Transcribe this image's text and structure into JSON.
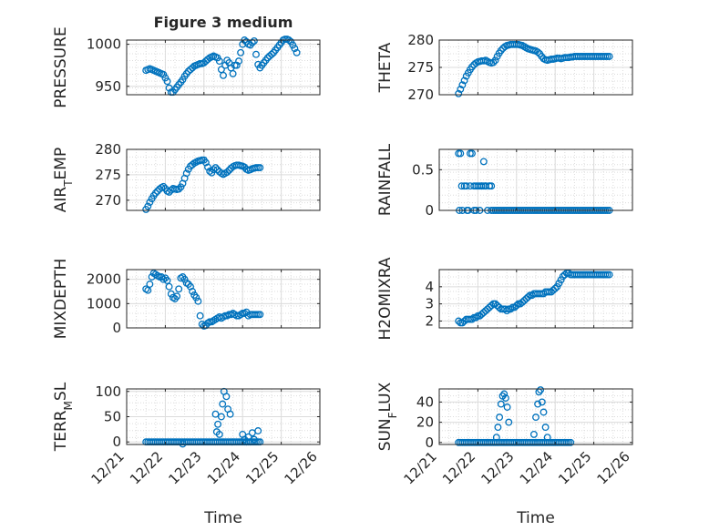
{
  "figure": {
    "title": "Figure 3 medium",
    "xlabel": "Time"
  },
  "style": {
    "marker_color": "#0072bd",
    "axis_color": "#262626",
    "grid_color": "#dcdcdc",
    "background": "#ffffff"
  },
  "x_axis": {
    "xlim": [
      0,
      5
    ],
    "ticks": [
      0,
      1,
      2,
      3,
      4,
      5
    ],
    "tick_labels": [
      "12/21",
      "12/22",
      "12/23",
      "12/24",
      "12/25",
      "12/26"
    ]
  },
  "chart_data": [
    {
      "type": "scatter",
      "ylabel": "PRESSURE",
      "ylim": [
        940,
        1005
      ],
      "yticks": [
        950,
        1000
      ],
      "ytick_labels": [
        "950",
        "1000"
      ],
      "grid": true,
      "x": [
        0.5,
        0.55,
        0.6,
        0.65,
        0.7,
        0.75,
        0.8,
        0.85,
        0.9,
        0.95,
        1.0,
        1.05,
        1.1,
        1.15,
        1.2,
        1.25,
        1.3,
        1.35,
        1.4,
        1.45,
        1.5,
        1.55,
        1.6,
        1.65,
        1.7,
        1.75,
        1.8,
        1.85,
        1.9,
        1.95,
        2.0,
        2.05,
        2.1,
        2.15,
        2.2,
        2.25,
        2.3,
        2.35,
        2.4,
        2.45,
        2.5,
        2.55,
        2.6,
        2.65,
        2.7,
        2.75,
        2.8,
        2.85,
        2.9,
        2.95,
        3.0,
        3.05,
        3.1,
        3.15,
        3.2,
        3.25,
        3.3,
        3.35,
        3.4,
        3.45,
        3.5,
        3.55,
        3.6,
        3.65,
        3.7,
        3.75,
        3.8,
        3.85,
        3.9,
        3.95,
        4.0,
        4.05,
        4.1,
        4.15,
        4.2,
        4.25,
        4.3,
        4.35,
        4.4
      ],
      "y": [
        969,
        970,
        971,
        970,
        969,
        968,
        967,
        966,
        965,
        964,
        960,
        956,
        948,
        943,
        943,
        946,
        949,
        952,
        955,
        958,
        962,
        965,
        968,
        970,
        972,
        974,
        975,
        976,
        977,
        977,
        978,
        980,
        982,
        984,
        985,
        986,
        985,
        984,
        980,
        970,
        963,
        975,
        981,
        978,
        972,
        965,
        975,
        975,
        980,
        990,
        1000,
        1005,
        1003,
        1000,
        999,
        1002,
        1004,
        988,
        976,
        972,
        975,
        978,
        981,
        984,
        986,
        988,
        990,
        993,
        996,
        999,
        1002,
        1005,
        1006,
        1006,
        1005,
        1003,
        999,
        995,
        990
      ]
    },
    {
      "type": "scatter",
      "ylabel": "THETA",
      "ylim": [
        270,
        280
      ],
      "yticks": [
        270,
        275,
        280
      ],
      "ytick_labels": [
        "270",
        "275",
        "280"
      ],
      "grid": true,
      "x": [
        0.5,
        0.55,
        0.6,
        0.65,
        0.7,
        0.75,
        0.8,
        0.85,
        0.9,
        0.95,
        1.0,
        1.05,
        1.1,
        1.15,
        1.2,
        1.25,
        1.3,
        1.35,
        1.4,
        1.45,
        1.5,
        1.55,
        1.6,
        1.65,
        1.7,
        1.75,
        1.8,
        1.85,
        1.9,
        1.95,
        2.0,
        2.05,
        2.1,
        2.15,
        2.2,
        2.25,
        2.3,
        2.35,
        2.4,
        2.45,
        2.5,
        2.55,
        2.6,
        2.65,
        2.7,
        2.75,
        2.8,
        2.85,
        2.9,
        2.95,
        3.0,
        3.05,
        3.1,
        3.15,
        3.2,
        3.25,
        3.3,
        3.35,
        3.4,
        3.45,
        3.5,
        3.55,
        3.6,
        3.65,
        3.7,
        3.75,
        3.8,
        3.85,
        3.9,
        3.95,
        4.0,
        4.05,
        4.1,
        4.15,
        4.2,
        4.25,
        4.3,
        4.35,
        4.4
      ],
      "y": [
        270.2,
        271.0,
        271.8,
        272.6,
        273.4,
        274.0,
        274.6,
        275.1,
        275.5,
        275.8,
        276.0,
        276.1,
        276.2,
        276.2,
        276.3,
        276.1,
        275.9,
        275.8,
        275.9,
        276.3,
        277.0,
        277.6,
        278.1,
        278.5,
        278.8,
        279.0,
        279.1,
        279.2,
        279.2,
        279.2,
        279.2,
        279.2,
        279.1,
        279.0,
        278.8,
        278.6,
        278.4,
        278.3,
        278.2,
        278.1,
        278.0,
        277.8,
        277.5,
        277.0,
        276.6,
        276.4,
        276.3,
        276.4,
        276.5,
        276.5,
        276.6,
        276.7,
        276.7,
        276.6,
        276.7,
        276.8,
        276.8,
        276.8,
        276.9,
        276.9,
        277.0,
        277.0,
        277.0,
        277.0,
        277.0,
        277.0,
        277.0,
        277.0,
        277.0,
        277.0,
        277.0,
        277.0,
        277.0,
        277.0,
        277.0,
        277.0,
        277.0,
        277.0,
        277.0
      ]
    },
    {
      "type": "scatter",
      "ylabel": "AIR_TEMP",
      "ylim": [
        268,
        280
      ],
      "yticks": [
        270,
        275,
        280
      ],
      "ytick_labels": [
        "270",
        "275",
        "280"
      ],
      "grid": true,
      "x": [
        0.5,
        0.55,
        0.6,
        0.65,
        0.7,
        0.75,
        0.8,
        0.85,
        0.9,
        0.95,
        1.0,
        1.05,
        1.1,
        1.15,
        1.2,
        1.25,
        1.3,
        1.35,
        1.4,
        1.45,
        1.5,
        1.55,
        1.6,
        1.65,
        1.7,
        1.75,
        1.8,
        1.85,
        1.9,
        1.95,
        2.0,
        2.05,
        2.1,
        2.15,
        2.2,
        2.25,
        2.3,
        2.35,
        2.4,
        2.45,
        2.5,
        2.55,
        2.6,
        2.65,
        2.7,
        2.75,
        2.8,
        2.85,
        2.9,
        2.95,
        3.0,
        3.05,
        3.1,
        3.15,
        3.2,
        3.25,
        3.3,
        3.35,
        3.4,
        3.45
      ],
      "y": [
        268.2,
        268.8,
        269.6,
        270.3,
        270.9,
        271.4,
        271.8,
        272.2,
        272.5,
        272.7,
        272.3,
        271.8,
        271.6,
        272.0,
        272.3,
        272.2,
        272.1,
        272.2,
        272.6,
        273.3,
        274.3,
        275.3,
        276.1,
        276.7,
        277.0,
        277.3,
        277.5,
        277.7,
        277.8,
        277.9,
        277.9,
        277.4,
        276.5,
        275.7,
        275.4,
        276.0,
        276.4,
        276.0,
        275.6,
        275.3,
        275.1,
        275.3,
        275.5,
        275.9,
        276.3,
        276.6,
        276.8,
        276.9,
        276.9,
        276.8,
        276.7,
        276.5,
        276.1,
        275.9,
        276.0,
        276.2,
        276.3,
        276.4,
        276.4,
        276.4
      ]
    },
    {
      "type": "scatter",
      "ylabel": "RAINFALL",
      "ylim": [
        0,
        0.75
      ],
      "yticks": [
        0,
        0.5
      ],
      "ytick_labels": [
        "0",
        "0.5"
      ],
      "grid": true,
      "x": [
        0.5,
        0.55,
        0.6,
        0.65,
        0.7,
        0.75,
        0.8,
        0.85,
        0.9,
        0.95,
        1.0,
        1.05,
        1.1,
        1.15,
        1.2,
        1.25,
        1.3,
        1.35,
        1.4,
        1.45,
        1.5,
        1.55,
        1.6,
        1.65,
        1.7,
        1.75,
        1.8,
        1.85,
        1.9,
        1.95,
        2.0,
        2.05,
        2.1,
        2.15,
        2.2,
        2.25,
        2.3,
        2.35,
        2.4,
        2.45,
        2.5,
        2.55,
        2.6,
        2.65,
        2.7,
        2.75,
        2.8,
        2.85,
        2.9,
        2.95,
        3.0,
        3.05,
        3.1,
        3.15,
        3.2,
        3.25,
        3.3,
        3.35,
        3.4,
        3.45,
        3.5,
        3.55,
        3.6,
        3.65,
        3.7,
        3.75,
        3.8,
        3.85,
        3.9,
        3.95,
        4.0,
        4.05,
        4.1,
        4.15,
        4.2,
        4.25,
        4.3,
        4.35,
        4.4,
        0.52,
        0.58,
        0.72,
        0.8,
        0.9,
        0.95,
        1.05,
        1.1,
        1.15,
        1.2,
        1.3,
        1.35
      ],
      "y": [
        0.7,
        0.7,
        0,
        0.3,
        0.3,
        0,
        0.7,
        0.7,
        0,
        0.3,
        0.3,
        0,
        0.3,
        0.3,
        0.3,
        0,
        0.3,
        0,
        0,
        0,
        0,
        0,
        0,
        0,
        0,
        0,
        0,
        0,
        0,
        0,
        0,
        0,
        0,
        0,
        0,
        0,
        0,
        0,
        0,
        0,
        0,
        0,
        0,
        0,
        0,
        0,
        0,
        0,
        0,
        0,
        0,
        0,
        0,
        0,
        0,
        0,
        0,
        0,
        0,
        0,
        0,
        0,
        0,
        0,
        0,
        0,
        0,
        0,
        0,
        0,
        0,
        0,
        0,
        0,
        0,
        0,
        0,
        0,
        0,
        0,
        0.3,
        0,
        0.3,
        0.3,
        0,
        0.3,
        0.3,
        0.6,
        0.3,
        0.3,
        0.3
      ]
    },
    {
      "type": "scatter",
      "ylabel": "MIXDEPTH",
      "ylim": [
        0,
        2400
      ],
      "yticks": [
        0,
        1000,
        2000
      ],
      "ytick_labels": [
        "0",
        "1000",
        "2000"
      ],
      "grid": true,
      "x": [
        0.5,
        0.55,
        0.6,
        0.65,
        0.7,
        0.75,
        0.8,
        0.85,
        0.9,
        0.95,
        1.0,
        1.05,
        1.1,
        1.15,
        1.2,
        1.25,
        1.3,
        1.35,
        1.4,
        1.45,
        1.5,
        1.55,
        1.6,
        1.65,
        1.7,
        1.75,
        1.8,
        1.85,
        1.9,
        1.95,
        2.0,
        2.05,
        2.1,
        2.15,
        2.2,
        2.25,
        2.3,
        2.35,
        2.4,
        2.45,
        2.5,
        2.55,
        2.6,
        2.65,
        2.7,
        2.75,
        2.8,
        2.85,
        2.9,
        2.95,
        3.0,
        3.05,
        3.1,
        3.15,
        3.2,
        3.25,
        3.3,
        3.35,
        3.4,
        3.45
      ],
      "y": [
        1600,
        1550,
        1800,
        2100,
        2250,
        2200,
        2150,
        2100,
        2100,
        2000,
        2050,
        1950,
        1700,
        1400,
        1250,
        1200,
        1300,
        1600,
        2050,
        2100,
        2000,
        1850,
        1800,
        1700,
        1500,
        1350,
        1250,
        1100,
        500,
        150,
        80,
        100,
        200,
        250,
        250,
        300,
        350,
        400,
        450,
        400,
        450,
        500,
        500,
        550,
        550,
        600,
        550,
        500,
        500,
        550,
        600,
        600,
        650,
        500,
        550,
        550,
        550,
        550,
        550,
        550
      ]
    },
    {
      "type": "scatter",
      "ylabel": "H2OMIXRA",
      "ylim": [
        1.6,
        5.0
      ],
      "yticks": [
        2,
        3,
        4
      ],
      "ytick_labels": [
        "2",
        "3",
        "4"
      ],
      "grid": true,
      "x": [
        0.5,
        0.55,
        0.6,
        0.65,
        0.7,
        0.75,
        0.8,
        0.85,
        0.9,
        0.95,
        1.0,
        1.05,
        1.1,
        1.15,
        1.2,
        1.25,
        1.3,
        1.35,
        1.4,
        1.45,
        1.5,
        1.55,
        1.6,
        1.65,
        1.7,
        1.75,
        1.8,
        1.85,
        1.9,
        1.95,
        2.0,
        2.05,
        2.1,
        2.15,
        2.2,
        2.25,
        2.3,
        2.35,
        2.4,
        2.45,
        2.5,
        2.55,
        2.6,
        2.65,
        2.7,
        2.75,
        2.8,
        2.85,
        2.9,
        2.95,
        3.0,
        3.05,
        3.1,
        3.15,
        3.2,
        3.25,
        3.3,
        3.35,
        3.4,
        3.45,
        3.5,
        3.55,
        3.6,
        3.65,
        3.7,
        3.75,
        3.8,
        3.85,
        3.9,
        3.95,
        4.0,
        4.05,
        4.1,
        4.15,
        4.2,
        4.25,
        4.3,
        4.35,
        4.4
      ],
      "y": [
        2.0,
        1.9,
        1.9,
        2.0,
        2.1,
        2.1,
        2.1,
        2.1,
        2.2,
        2.2,
        2.3,
        2.3,
        2.4,
        2.5,
        2.6,
        2.7,
        2.8,
        2.9,
        3.0,
        3.0,
        2.9,
        2.8,
        2.7,
        2.7,
        2.7,
        2.6,
        2.7,
        2.7,
        2.8,
        2.8,
        2.9,
        3.0,
        3.0,
        3.1,
        3.2,
        3.3,
        3.4,
        3.5,
        3.5,
        3.6,
        3.6,
        3.6,
        3.6,
        3.6,
        3.6,
        3.7,
        3.7,
        3.7,
        3.7,
        3.8,
        3.9,
        4.0,
        4.2,
        4.4,
        4.6,
        4.7,
        4.8,
        4.8,
        4.7,
        4.7,
        4.7,
        4.7,
        4.7,
        4.7,
        4.7,
        4.7,
        4.7,
        4.7,
        4.7,
        4.7,
        4.7,
        4.7,
        4.7,
        4.7,
        4.7,
        4.7,
        4.7,
        4.7,
        4.7
      ]
    },
    {
      "type": "scatter",
      "ylabel": "TERR_MSL",
      "ylim": [
        -5,
        105
      ],
      "yticks": [
        0,
        50,
        100
      ],
      "ytick_labels": [
        "0",
        "50",
        "100"
      ],
      "grid": true,
      "x": [
        0.5,
        0.55,
        0.6,
        0.65,
        0.7,
        0.75,
        0.8,
        0.85,
        0.9,
        0.95,
        1.0,
        1.05,
        1.1,
        1.15,
        1.2,
        1.25,
        1.3,
        1.35,
        1.4,
        1.45,
        1.5,
        1.55,
        1.6,
        1.65,
        1.7,
        1.75,
        1.8,
        1.85,
        1.9,
        1.95,
        2.0,
        2.05,
        2.1,
        2.15,
        2.2,
        2.25,
        2.3,
        2.35,
        2.4,
        2.45,
        2.5,
        2.55,
        2.6,
        2.65,
        2.7,
        2.75,
        2.8,
        2.85,
        2.9,
        2.95,
        3.0,
        3.05,
        3.1,
        3.15,
        3.2,
        3.25,
        3.3,
        3.35,
        3.4,
        3.45,
        2.3,
        2.33,
        2.36,
        2.4,
        2.45,
        2.48,
        2.52,
        2.58,
        2.62,
        2.68,
        3.0,
        3.05,
        3.1,
        3.15,
        3.2,
        3.25,
        3.3,
        3.4,
        1.45
      ],
      "y": [
        0,
        0,
        0,
        0,
        0,
        0,
        0,
        0,
        0,
        0,
        0,
        0,
        0,
        0,
        0,
        0,
        0,
        0,
        0,
        0,
        0,
        0,
        0,
        0,
        0,
        0,
        0,
        0,
        0,
        0,
        0,
        0,
        0,
        0,
        0,
        0,
        0,
        0,
        0,
        0,
        0,
        0,
        0,
        0,
        0,
        0,
        0,
        0,
        0,
        0,
        0,
        0,
        0,
        0,
        0,
        0,
        0,
        0,
        0,
        0,
        55,
        20,
        35,
        15,
        50,
        75,
        100,
        90,
        65,
        55,
        15,
        5,
        0,
        10,
        0,
        18,
        5,
        22,
        -4
      ]
    },
    {
      "type": "scatter",
      "ylabel": "SUN_FLUX",
      "ylim": [
        -2,
        53
      ],
      "yticks": [
        0,
        20,
        40
      ],
      "ytick_labels": [
        "0",
        "20",
        "40"
      ],
      "grid": true,
      "x": [
        0.5,
        0.55,
        0.6,
        0.65,
        0.7,
        0.75,
        0.8,
        0.85,
        0.9,
        0.95,
        1.0,
        1.05,
        1.1,
        1.15,
        1.2,
        1.25,
        1.3,
        1.35,
        1.4,
        1.45,
        1.5,
        1.55,
        1.6,
        1.65,
        1.7,
        1.75,
        1.8,
        1.85,
        1.9,
        1.95,
        2.0,
        2.05,
        2.1,
        2.15,
        2.2,
        2.25,
        2.3,
        2.35,
        2.4,
        2.45,
        2.5,
        2.55,
        2.6,
        2.65,
        2.7,
        2.75,
        2.8,
        2.85,
        2.9,
        2.95,
        3.0,
        3.05,
        3.1,
        3.15,
        3.2,
        3.25,
        3.3,
        3.35,
        3.4,
        1.48,
        1.52,
        1.56,
        1.6,
        1.64,
        1.68,
        1.72,
        1.76,
        1.8,
        2.45,
        2.5,
        2.55,
        2.58,
        2.62,
        2.66,
        2.7,
        2.75,
        2.8
      ],
      "y": [
        0,
        0,
        0,
        0,
        0,
        0,
        0,
        0,
        0,
        0,
        0,
        0,
        0,
        0,
        0,
        0,
        0,
        0,
        0,
        0,
        0,
        0,
        0,
        0,
        0,
        0,
        0,
        0,
        0,
        0,
        0,
        0,
        0,
        0,
        0,
        0,
        0,
        0,
        0,
        0,
        0,
        0,
        0,
        0,
        0,
        0,
        0,
        0,
        0,
        0,
        0,
        0,
        0,
        0,
        0,
        0,
        0,
        0,
        0,
        5,
        15,
        25,
        38,
        46,
        48,
        44,
        35,
        20,
        8,
        25,
        38,
        50,
        52,
        40,
        30,
        15,
        5
      ]
    }
  ]
}
